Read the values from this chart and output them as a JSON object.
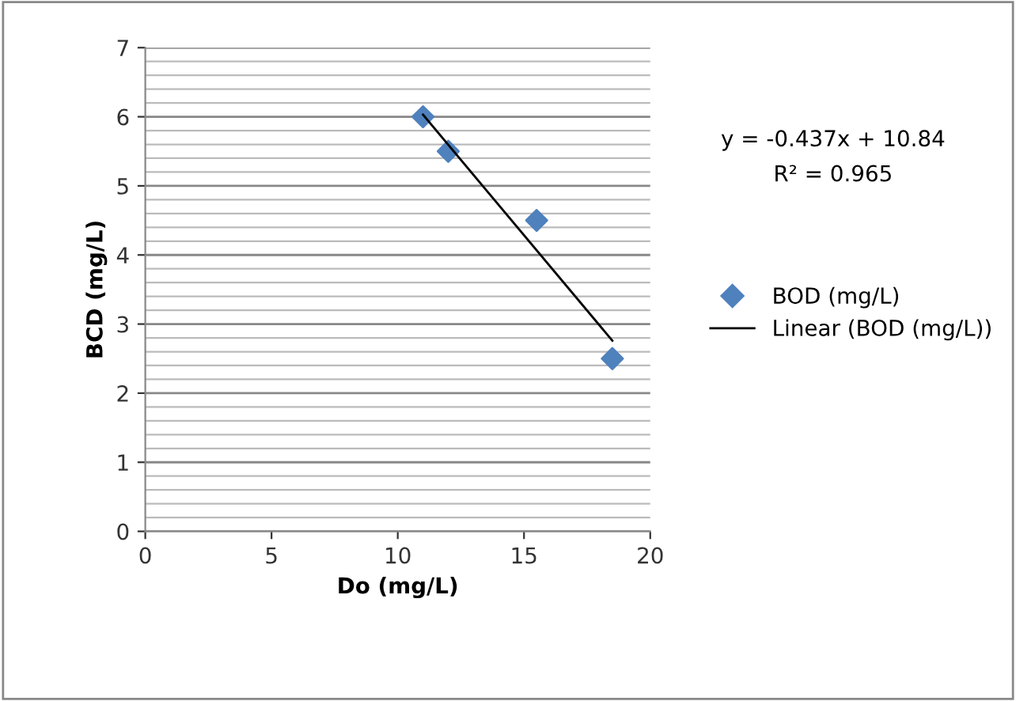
{
  "chart_data": {
    "type": "scatter",
    "xlabel": "Do (mg/L)",
    "ylabel": "BCD (mg/L)",
    "series": [
      {
        "name": "BOD (mg/L)",
        "color": "#4f81bd",
        "marker": "diamond",
        "x": [
          11,
          12,
          15.5,
          18.5
        ],
        "values": [
          6,
          5.5,
          4.5,
          2.5
        ]
      },
      {
        "name": "Linear (BOD (mg/L))",
        "type": "line",
        "color": "#000000",
        "line_style": "solid",
        "x": [
          11,
          18.5
        ],
        "values": [
          6.03,
          2.76
        ]
      }
    ],
    "annotations": [
      "y = -0.437x + 10.84",
      "R² = 0.965"
    ],
    "xlim": [
      0,
      20
    ],
    "xticks": [
      0,
      5,
      10,
      15,
      20
    ],
    "ylim": [
      0,
      7
    ],
    "yticks": [
      0,
      1,
      2,
      3,
      4,
      5,
      6,
      7
    ],
    "grid": "y",
    "legend": "right"
  }
}
